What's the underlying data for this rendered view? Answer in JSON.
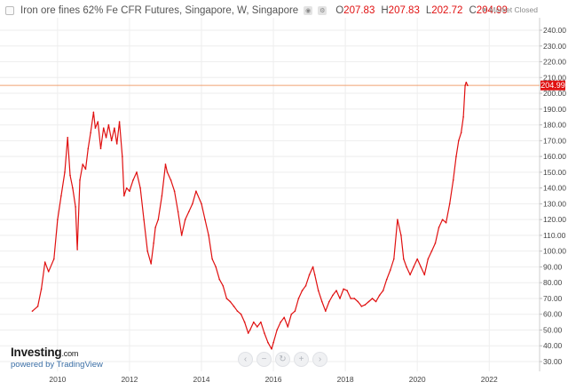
{
  "legend": {
    "title": "Iron ore fines 62% Fe CFR Futures, Singapore, W, Singapore",
    "open_label": "O",
    "open_value": "207.83",
    "high_label": "H",
    "high_value": "207.83",
    "low_label": "L",
    "low_value": "202.72",
    "close_label": "C",
    "close_value": "204.99"
  },
  "market_status": "Market Closed",
  "brand": {
    "name": "Investing",
    "suffix": ".com",
    "powered_by": "powered by TradingView"
  },
  "nav_buttons": [
    "‹",
    "−",
    "↻",
    "+",
    "›"
  ],
  "colors": {
    "line": "#e01010",
    "price_label_bg": "#e01010",
    "current_price_line": "#f0a070",
    "grid": "#eeeeee"
  },
  "chart_data": {
    "type": "line",
    "title": "Iron ore fines 62% Fe CFR Futures, Singapore, W, Singapore",
    "current_price_label": "204.99",
    "ylim": [
      30,
      240
    ],
    "y_ticks": [
      "30.00",
      "40.00",
      "50.00",
      "60.00",
      "70.00",
      "80.00",
      "90.00",
      "100.00",
      "110.00",
      "120.00",
      "130.00",
      "140.00",
      "150.00",
      "160.00",
      "170.00",
      "180.00",
      "190.00",
      "200.00",
      "210.00",
      "220.00",
      "230.00",
      "240.00"
    ],
    "xlim": [
      2008.4,
      2023.4
    ],
    "x_ticks": [
      "2010",
      "2012",
      "2014",
      "2016",
      "2018",
      "2020",
      "2022"
    ],
    "series": [
      {
        "x": [
          2009.3,
          2009.45,
          2009.55,
          2009.65,
          2009.75,
          2009.9,
          2010.0,
          2010.1,
          2010.2,
          2010.28,
          2010.35,
          2010.42,
          2010.5,
          2010.55,
          2010.62,
          2010.7,
          2010.78,
          2010.85,
          2010.92,
          2011.0,
          2011.05,
          2011.12,
          2011.2,
          2011.28,
          2011.35,
          2011.42,
          2011.5,
          2011.58,
          2011.65,
          2011.72,
          2011.8,
          2011.85,
          2011.92,
          2012.0,
          2012.1,
          2012.2,
          2012.3,
          2012.4,
          2012.5,
          2012.6,
          2012.67,
          2012.72,
          2012.8,
          2012.9,
          2013.0,
          2013.05,
          2013.15,
          2013.25,
          2013.35,
          2013.45,
          2013.55,
          2013.65,
          2013.75,
          2013.85,
          2014.0,
          2014.1,
          2014.2,
          2014.3,
          2014.4,
          2014.5,
          2014.6,
          2014.7,
          2014.8,
          2014.9,
          2015.0,
          2015.1,
          2015.2,
          2015.3,
          2015.35,
          2015.45,
          2015.55,
          2015.65,
          2015.75,
          2015.85,
          2015.95,
          2016.0,
          2016.1,
          2016.2,
          2016.3,
          2016.4,
          2016.5,
          2016.6,
          2016.7,
          2016.8,
          2016.9,
          2017.0,
          2017.1,
          2017.15,
          2017.25,
          2017.35,
          2017.45,
          2017.55,
          2017.65,
          2017.75,
          2017.85,
          2017.95,
          2018.05,
          2018.15,
          2018.25,
          2018.35,
          2018.45,
          2018.55,
          2018.65,
          2018.75,
          2018.85,
          2018.95,
          2019.05,
          2019.15,
          2019.25,
          2019.35,
          2019.45,
          2019.55,
          2019.62,
          2019.7,
          2019.8,
          2019.9,
          2020.0,
          2020.1,
          2020.2,
          2020.3,
          2020.4,
          2020.5,
          2020.6,
          2020.7,
          2020.8,
          2020.9,
          2021.0,
          2021.08,
          2021.15,
          2021.22,
          2021.28,
          2021.33,
          2021.36,
          2021.4
        ],
        "y": [
          62,
          65,
          76,
          93,
          87,
          95,
          120,
          135,
          150,
          172,
          148,
          140,
          128,
          101,
          145,
          155,
          152,
          165,
          175,
          188,
          178,
          182,
          165,
          178,
          172,
          180,
          170,
          178,
          168,
          182,
          160,
          135,
          140,
          138,
          145,
          150,
          140,
          120,
          100,
          92,
          105,
          115,
          120,
          135,
          155,
          150,
          145,
          138,
          125,
          110,
          120,
          125,
          130,
          138,
          130,
          120,
          110,
          95,
          90,
          82,
          78,
          70,
          68,
          65,
          62,
          60,
          55,
          48,
          50,
          55,
          52,
          55,
          48,
          42,
          38,
          42,
          50,
          55,
          58,
          52,
          60,
          62,
          70,
          75,
          78,
          85,
          90,
          85,
          75,
          68,
          62,
          68,
          72,
          75,
          70,
          76,
          75,
          70,
          70,
          68,
          65,
          66,
          68,
          70,
          68,
          72,
          75,
          82,
          88,
          95,
          120,
          110,
          95,
          90,
          85,
          90,
          95,
          90,
          85,
          95,
          100,
          105,
          115,
          120,
          118,
          130,
          145,
          160,
          170,
          175,
          185,
          205,
          207,
          204.99
        ]
      }
    ]
  }
}
